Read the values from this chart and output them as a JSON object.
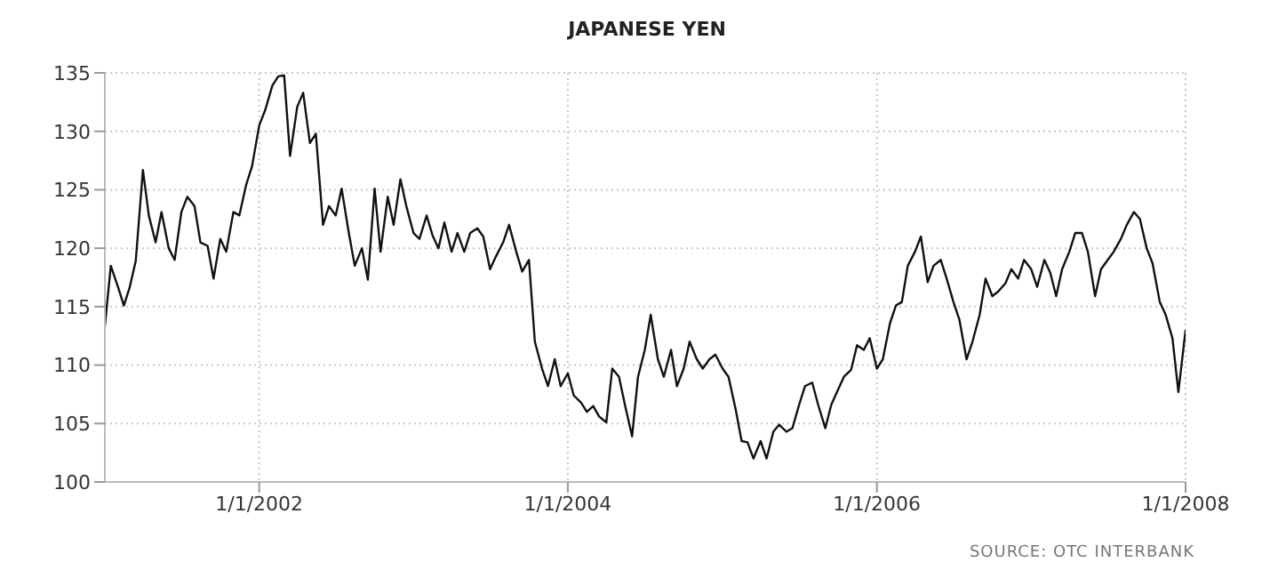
{
  "chart_data": {
    "type": "line",
    "title": "JAPANESE YEN",
    "annotations": [
      "SOURCE: OTC INTERBANK"
    ],
    "x": [
      "2001-01-01",
      "2001-01-15",
      "2001-02-01",
      "2001-02-15",
      "2001-03-01",
      "2001-03-15",
      "2001-04-01",
      "2001-04-15",
      "2001-05-01",
      "2001-05-15",
      "2001-06-01",
      "2001-06-15",
      "2001-07-01",
      "2001-07-15",
      "2001-08-01",
      "2001-08-15",
      "2001-09-01",
      "2001-09-15",
      "2001-10-01",
      "2001-10-15",
      "2001-11-01",
      "2001-11-15",
      "2001-12-01",
      "2001-12-15",
      "2002-01-01",
      "2002-01-15",
      "2002-02-01",
      "2002-02-15",
      "2002-03-01",
      "2002-03-15",
      "2002-04-01",
      "2002-04-15",
      "2002-05-01",
      "2002-05-15",
      "2002-06-01",
      "2002-06-15",
      "2002-07-01",
      "2002-07-15",
      "2002-08-01",
      "2002-08-15",
      "2002-09-01",
      "2002-09-15",
      "2002-10-01",
      "2002-10-15",
      "2002-11-01",
      "2002-11-15",
      "2002-12-01",
      "2002-12-15",
      "2003-01-01",
      "2003-01-15",
      "2003-02-01",
      "2003-02-15",
      "2003-03-01",
      "2003-03-15",
      "2003-04-01",
      "2003-04-15",
      "2003-05-01",
      "2003-05-15",
      "2003-06-01",
      "2003-06-15",
      "2003-07-01",
      "2003-07-15",
      "2003-08-01",
      "2003-08-15",
      "2003-09-01",
      "2003-09-15",
      "2003-10-01",
      "2003-10-15",
      "2003-11-01",
      "2003-11-15",
      "2003-12-01",
      "2003-12-15",
      "2004-01-01",
      "2004-01-15",
      "2004-02-01",
      "2004-02-15",
      "2004-03-01",
      "2004-03-15",
      "2004-04-01",
      "2004-04-15",
      "2004-05-01",
      "2004-05-15",
      "2004-06-01",
      "2004-06-15",
      "2004-07-01",
      "2004-07-15",
      "2004-08-01",
      "2004-08-15",
      "2004-09-01",
      "2004-09-15",
      "2004-10-01",
      "2004-10-15",
      "2004-11-01",
      "2004-11-15",
      "2004-12-01",
      "2004-12-15",
      "2005-01-01",
      "2005-01-15",
      "2005-02-01",
      "2005-02-15",
      "2005-03-01",
      "2005-03-15",
      "2005-04-01",
      "2005-04-15",
      "2005-05-01",
      "2005-05-15",
      "2005-06-01",
      "2005-06-15",
      "2005-07-01",
      "2005-07-15",
      "2005-08-01",
      "2005-08-15",
      "2005-09-01",
      "2005-09-15",
      "2005-10-01",
      "2005-10-15",
      "2005-11-01",
      "2005-11-15",
      "2005-12-01",
      "2005-12-15",
      "2006-01-01",
      "2006-01-15",
      "2006-02-01",
      "2006-02-15",
      "2006-03-01",
      "2006-03-15",
      "2006-04-01",
      "2006-04-15",
      "2006-05-01",
      "2006-05-15",
      "2006-06-01",
      "2006-06-15",
      "2006-07-01",
      "2006-07-15",
      "2006-08-01",
      "2006-08-15",
      "2006-09-01",
      "2006-09-15",
      "2006-10-01",
      "2006-10-15",
      "2006-11-01",
      "2006-11-15",
      "2006-12-01",
      "2006-12-15",
      "2007-01-01",
      "2007-01-15",
      "2007-02-01",
      "2007-02-15",
      "2007-03-01",
      "2007-03-15",
      "2007-04-01",
      "2007-04-15",
      "2007-05-01",
      "2007-05-15",
      "2007-06-01",
      "2007-06-15",
      "2007-07-01",
      "2007-07-15",
      "2007-08-01",
      "2007-08-15",
      "2007-09-01",
      "2007-09-15",
      "2007-10-01",
      "2007-10-15",
      "2007-11-01",
      "2007-11-15",
      "2007-12-01",
      "2007-12-15",
      "2008-01-01"
    ],
    "series": [
      {
        "color": "#111111",
        "values": [
          113.3,
          118.5,
          116.7,
          115.1,
          116.7,
          118.9,
          126.7,
          122.8,
          120.5,
          123.1,
          120.0,
          119.0,
          123.1,
          124.4,
          123.6,
          120.5,
          120.2,
          117.4,
          120.8,
          119.7,
          123.1,
          122.8,
          125.4,
          127.0,
          130.5,
          131.8,
          133.9,
          134.7,
          134.8,
          127.9,
          132.1,
          133.3,
          129.0,
          129.8,
          122.0,
          123.6,
          122.8,
          125.1,
          121.3,
          118.5,
          120.0,
          117.3,
          125.1,
          119.7,
          124.4,
          122.0,
          125.9,
          123.6,
          121.3,
          120.8,
          122.8,
          121.1,
          120.0,
          122.2,
          119.7,
          121.3,
          119.7,
          121.3,
          121.7,
          121.0,
          118.2,
          119.3,
          120.5,
          122.0,
          119.7,
          118.0,
          119.0,
          112.0,
          109.7,
          108.2,
          110.5,
          108.2,
          109.3,
          107.4,
          106.8,
          106.0,
          106.5,
          105.6,
          105.1,
          109.7,
          109.0,
          106.6,
          103.9,
          109.0,
          111.3,
          114.3,
          110.5,
          109.0,
          111.3,
          108.2,
          109.7,
          112.0,
          110.5,
          109.7,
          110.5,
          110.9,
          109.7,
          109.0,
          106.2,
          103.5,
          103.4,
          102.0,
          103.5,
          102.0,
          104.3,
          104.9,
          104.3,
          104.6,
          106.6,
          108.2,
          108.5,
          106.6,
          104.6,
          106.6,
          107.9,
          109.0,
          109.6,
          111.7,
          111.3,
          112.3,
          109.7,
          110.5,
          113.6,
          115.1,
          115.4,
          118.5,
          119.7,
          121.0,
          117.1,
          118.5,
          119.0,
          117.4,
          115.4,
          113.9,
          110.5,
          112.0,
          114.3,
          117.4,
          115.9,
          116.3,
          117.0,
          118.2,
          117.4,
          119.0,
          118.2,
          116.7,
          119.0,
          117.9,
          115.9,
          118.2,
          119.7,
          121.3,
          121.3,
          119.7,
          115.9,
          118.2,
          119.0,
          119.7,
          120.8,
          122.0,
          123.1,
          122.5,
          120.0,
          118.7,
          115.4,
          114.3,
          112.3,
          107.7,
          113.0
        ]
      }
    ],
    "xlim": [
      "2001-01-01",
      "2008-01-01"
    ],
    "xticks": [
      {
        "value": "2002-01-01",
        "label": "1/1/2002"
      },
      {
        "value": "2004-01-01",
        "label": "1/1/2004"
      },
      {
        "value": "2006-01-01",
        "label": "1/1/2006"
      },
      {
        "value": "2008-01-01",
        "label": "1/1/2008"
      }
    ],
    "ylim": [
      100,
      135
    ],
    "yticks": [
      100,
      105,
      110,
      115,
      120,
      125,
      130,
      135
    ],
    "grid": true,
    "legend": false,
    "marker": "none",
    "line_style": "solid"
  }
}
